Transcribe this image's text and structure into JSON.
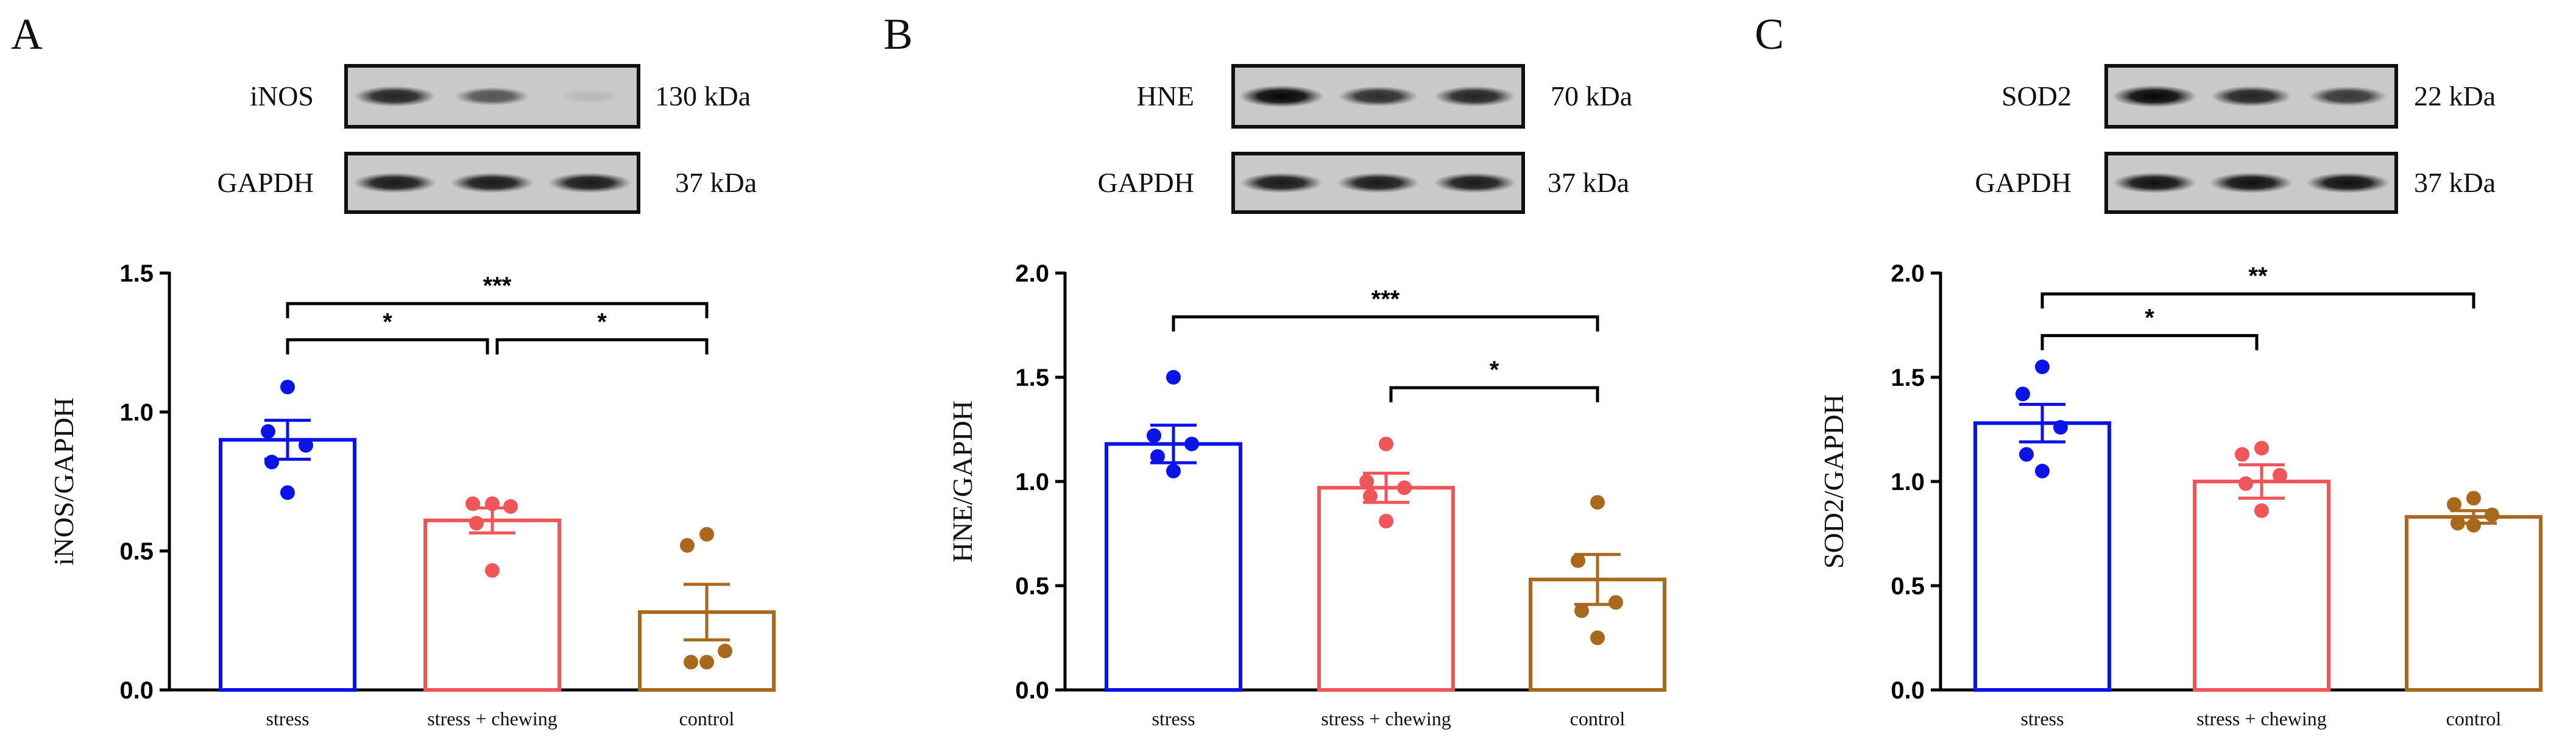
{
  "panels": [
    {
      "letter": "A",
      "blots": [
        {
          "protein": "iNOS",
          "size": "130 kDa",
          "bands": [
            0.85,
            0.6,
            0.08
          ]
        },
        {
          "protein": "GAPDH",
          "size": "37 kDa",
          "bands": [
            0.9,
            0.9,
            0.9
          ]
        }
      ]
    },
    {
      "letter": "B",
      "blots": [
        {
          "protein": "HNE",
          "size": "70 kDa",
          "bands": [
            1.0,
            0.8,
            0.85
          ]
        },
        {
          "protein": "GAPDH",
          "size": "37 kDa",
          "bands": [
            0.9,
            0.9,
            0.9
          ]
        }
      ]
    },
    {
      "letter": "C",
      "blots": [
        {
          "protein": "SOD2",
          "size": "22 kDa",
          "bands": [
            1.0,
            0.85,
            0.75
          ]
        },
        {
          "protein": "GAPDH",
          "size": "37 kDa",
          "bands": [
            0.95,
            0.95,
            0.95
          ]
        }
      ]
    }
  ],
  "colors": {
    "stress": "#0a14e6",
    "stress + chewing": "#f0555a",
    "control": "#a8691e",
    "axis": "#000000"
  },
  "chart_data": [
    {
      "type": "bar",
      "title": "",
      "xlabel": "",
      "ylabel": "iNOS/GAPDH",
      "categories": [
        "stress",
        "stress + chewing",
        "control"
      ],
      "values": [
        0.9,
        0.61,
        0.28
      ],
      "sem": [
        0.07,
        0.045,
        0.1
      ],
      "points": [
        [
          1.09,
          0.93,
          0.88,
          0.82,
          0.71
        ],
        [
          0.67,
          0.67,
          0.66,
          0.6,
          0.43
        ],
        [
          0.56,
          0.52,
          0.14,
          0.1,
          0.1
        ]
      ],
      "ylim": [
        0,
        1.5
      ],
      "yticks": [
        "0.0",
        "0.5",
        "1.0",
        "1.5"
      ],
      "significance": [
        {
          "from": 0,
          "to": 1,
          "label": "*",
          "level": 1.26
        },
        {
          "from": 1,
          "to": 2,
          "label": "*",
          "level": 1.26
        },
        {
          "from": 0,
          "to": 2,
          "label": "***",
          "level": 1.39
        }
      ]
    },
    {
      "type": "bar",
      "title": "",
      "xlabel": "",
      "ylabel": "HNE/GAPDH",
      "categories": [
        "stress",
        "stress + chewing",
        "control"
      ],
      "values": [
        1.18,
        0.97,
        0.53
      ],
      "sem": [
        0.09,
        0.07,
        0.12
      ],
      "points": [
        [
          1.5,
          1.22,
          1.18,
          1.12,
          1.05
        ],
        [
          1.18,
          1.0,
          0.97,
          0.93,
          0.81
        ],
        [
          0.9,
          0.62,
          0.42,
          0.38,
          0.25
        ]
      ],
      "ylim": [
        0,
        2.0
      ],
      "yticks": [
        "0.0",
        "0.5",
        "1.0",
        "1.5",
        "2.0"
      ],
      "significance": [
        {
          "from": 1,
          "to": 2,
          "label": "*",
          "level": 1.45
        },
        {
          "from": 0,
          "to": 2,
          "label": "***",
          "level": 1.79
        }
      ]
    },
    {
      "type": "bar",
      "title": "",
      "xlabel": "",
      "ylabel": "SOD2/GAPDH",
      "categories": [
        "stress",
        "stress + chewing",
        "control"
      ],
      "values": [
        1.28,
        1.0,
        0.83
      ],
      "sem": [
        0.09,
        0.08,
        0.03
      ],
      "points": [
        [
          1.55,
          1.42,
          1.26,
          1.13,
          1.05
        ],
        [
          1.16,
          1.13,
          1.03,
          0.99,
          0.86
        ],
        [
          0.92,
          0.89,
          0.84,
          0.8,
          0.79
        ]
      ],
      "ylim": [
        0,
        2.0
      ],
      "yticks": [
        "0.0",
        "0.5",
        "1.0",
        "1.5",
        "2.0"
      ],
      "significance": [
        {
          "from": 0,
          "to": 1,
          "label": "*",
          "level": 1.7
        },
        {
          "from": 0,
          "to": 2,
          "label": "**",
          "level": 1.9
        }
      ]
    }
  ]
}
